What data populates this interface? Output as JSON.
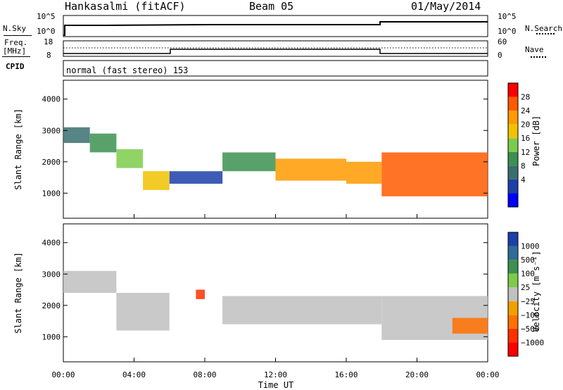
{
  "header": {
    "station": "Hankasalmi (fitACF)",
    "beam": "Beam 05",
    "date": "01/May/2014"
  },
  "noise_panel": {
    "left_label": "N.Sky",
    "right_label": "N.Search",
    "left_ticks": [
      "10^5",
      "10^0"
    ],
    "right_ticks": [
      "10^5",
      "10^0"
    ]
  },
  "freq_panel": {
    "left_label_1": "Freq.",
    "left_label_2": "[MHz]",
    "cpid_label": "CPID",
    "right_label": "Nave",
    "left_ticks": [
      "18",
      "8"
    ],
    "right_ticks": [
      "60",
      "0"
    ]
  },
  "cpid_text": "normal (fast stereo) 153",
  "power_panel": {
    "ylabel": "Slant Range [km]",
    "yticks": [
      "4000",
      "3000",
      "2000",
      "1000"
    ],
    "colorbar_label": "Power [dB]",
    "colorbar_ticks": [
      "28",
      "24",
      "20",
      "16",
      "12",
      "8",
      "4"
    ],
    "colors": [
      "#0000ff",
      "#1c3fa8",
      "#3a6e6e",
      "#3c9050",
      "#7ccc4a",
      "#f0c200",
      "#ff9a00",
      "#ff5a00",
      "#ff0000"
    ]
  },
  "velocity_panel": {
    "ylabel": "Slant Range [km]",
    "yticks": [
      "4000",
      "3000",
      "2000",
      "1000"
    ],
    "colorbar_label": "Velocity [m s⁻¹]",
    "colorbar_ticks": [
      "1000",
      "500",
      "100",
      "25",
      "−25",
      "−100",
      "−500",
      "−1000"
    ],
    "colors": [
      "#1c3fa8",
      "#2e6c96",
      "#3c9050",
      "#7ccc4a",
      "#c0c0c0",
      "#f0a000",
      "#ff7000",
      "#ff3000",
      "#ff0000"
    ]
  },
  "xaxis": {
    "label": "Time UT",
    "ticks": [
      "00:00",
      "04:00",
      "08:00",
      "12:00",
      "16:00",
      "20:00",
      "00:00"
    ]
  },
  "chart_data": {
    "type": "heatmap",
    "title": "Hankasalmi (fitACF) Beam 05 01/May/2014",
    "xlabel": "Time UT",
    "ylabel": "Slant Range [km]",
    "xlim": [
      "00:00",
      "24:00"
    ],
    "ylim": [
      200,
      4600
    ],
    "series": [
      {
        "name": "Power [dB]",
        "bands": [
          {
            "t_start": 0.0,
            "t_end": 1.5,
            "r_low": 2600,
            "r_high": 3100,
            "value": 10
          },
          {
            "t_start": 1.5,
            "t_end": 3.0,
            "r_low": 2300,
            "r_high": 2900,
            "value": 12
          },
          {
            "t_start": 3.0,
            "t_end": 4.5,
            "r_low": 1800,
            "r_high": 2400,
            "value": 18
          },
          {
            "t_start": 4.5,
            "t_end": 6.0,
            "r_low": 1100,
            "r_high": 1700,
            "value": 22
          },
          {
            "t_start": 6.0,
            "t_end": 9.0,
            "r_low": 1300,
            "r_high": 1700,
            "value": 6
          },
          {
            "t_start": 9.0,
            "t_end": 12.0,
            "r_low": 1700,
            "r_high": 2300,
            "value": 14
          },
          {
            "t_start": 12.0,
            "t_end": 16.0,
            "r_low": 1400,
            "r_high": 2100,
            "value": 24
          },
          {
            "t_start": 16.0,
            "t_end": 18.0,
            "r_low": 1300,
            "r_high": 2000,
            "value": 26
          },
          {
            "t_start": 18.0,
            "t_end": 24.0,
            "r_low": 900,
            "r_high": 2300,
            "value": 30
          }
        ]
      },
      {
        "name": "Velocity [m s⁻¹]",
        "bands": [
          {
            "t_start": 0.0,
            "t_end": 3.0,
            "r_low": 2400,
            "r_high": 3100,
            "value": 0
          },
          {
            "t_start": 3.0,
            "t_end": 6.0,
            "r_low": 1200,
            "r_high": 2400,
            "value": 0
          },
          {
            "t_start": 7.5,
            "t_end": 8.0,
            "r_low": 2200,
            "r_high": 2500,
            "value": -800
          },
          {
            "t_start": 9.0,
            "t_end": 18.0,
            "r_low": 1400,
            "r_high": 2300,
            "value": 0
          },
          {
            "t_start": 18.0,
            "t_end": 24.0,
            "r_low": 900,
            "r_high": 2300,
            "value": 0
          },
          {
            "t_start": 22.0,
            "t_end": 24.0,
            "r_low": 1100,
            "r_high": 1600,
            "value": -300
          }
        ]
      }
    ]
  }
}
